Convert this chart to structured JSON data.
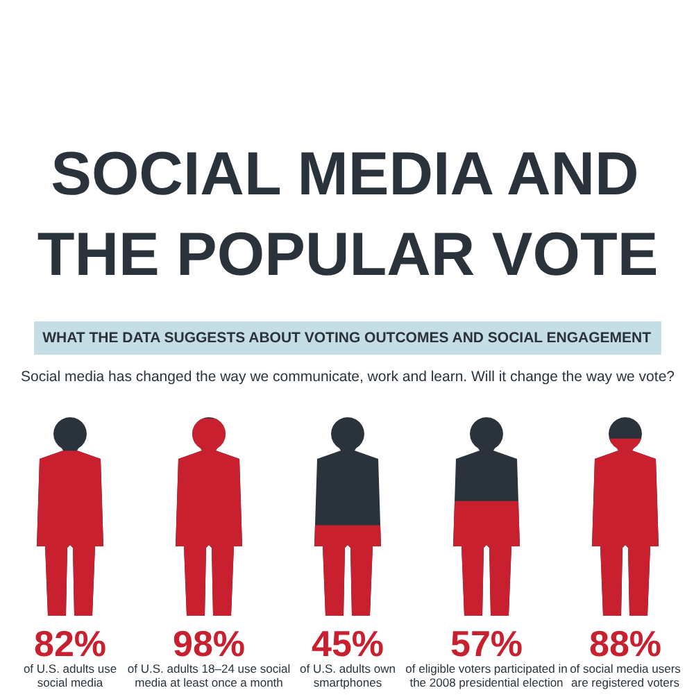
{
  "chart_data": {
    "type": "other",
    "title": "SOCIAL MEDIA AND\nTHE POPULAR VOTE",
    "subtitle": "WHAT THE DATA SUGGESTS ABOUT VOTING OUTCOMES AND SOCIAL ENGAGEMENT",
    "annotations": [
      "Social media has changed the way we communicate, work and learn. Will it change the way we vote?"
    ],
    "categories": [
      "of U.S. adults use\nsocial media",
      "of U.S. adults 18–24 use social\nmedia at least once a month",
      "of U.S. adults own\nsmartphones",
      "of eligible voters participated in\nthe 2008 presidential election",
      "of social media users\nare registered voters"
    ],
    "values": [
      82,
      98,
      45,
      57,
      88
    ],
    "value_labels": [
      "82%",
      "98%",
      "45%",
      "57%",
      "88%"
    ],
    "color": "#c8202f"
  }
}
